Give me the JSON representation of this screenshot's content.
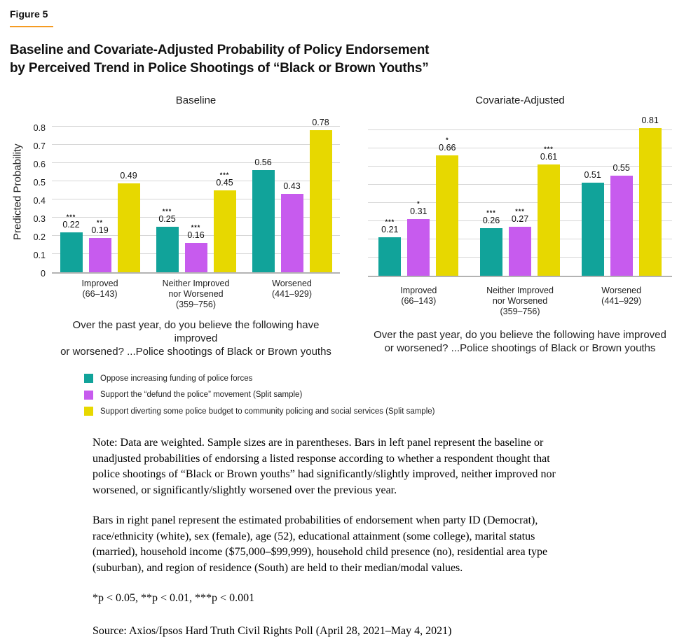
{
  "figure_label": "Figure 5",
  "title_line1": "Baseline and Covariate-Adjusted Probability of Policy Endorsement",
  "title_line2": "by Perceived Trend in Police Shootings of “Black or Brown Youths”",
  "colors": {
    "accent_orange": "#f59b22",
    "teal": "#11a39a",
    "magenta": "#c75bee",
    "yellow": "#e7d800",
    "gridline": "#d6d6d6",
    "axis": "#b3b3b3"
  },
  "chart_data": [
    {
      "type": "bar",
      "title": "Baseline",
      "ylabel": "Predicted Probability",
      "ylim": [
        0,
        0.8
      ],
      "ytick_labels": [
        "0",
        "0.1",
        "0.2",
        "0.3",
        "0.4",
        "0.5",
        "0.6",
        "0.7",
        "0.8"
      ],
      "show_yaxis": true,
      "grid": true,
      "categories": [
        [
          "Improved",
          "(66–143)"
        ],
        [
          "Neither Improved",
          "nor Worsened",
          "(359–756)"
        ],
        [
          "Worsened",
          "(441–929)"
        ]
      ],
      "series": [
        {
          "name": "Oppose increasing funding of police forces",
          "color": "#11a39a",
          "values": [
            0.22,
            0.25,
            0.56
          ],
          "sig": [
            "***",
            "***",
            ""
          ]
        },
        {
          "name": "Support the “defund the police” movement (Split sample)",
          "color": "#c75bee",
          "values": [
            0.19,
            0.16,
            0.43
          ],
          "sig": [
            "**",
            "***",
            ""
          ]
        },
        {
          "name": "Support diverting some police budget to community policing and social services (Split sample)",
          "color": "#e7d800",
          "values": [
            0.49,
            0.45,
            0.78
          ],
          "sig": [
            "",
            "***",
            ""
          ]
        }
      ],
      "xcaption": [
        "Over the past year, do you believe the following have improved",
        "or worsened? ...Police shootings of Black or Brown youths"
      ]
    },
    {
      "type": "bar",
      "title": "Covariate-Adjusted",
      "ylabel": "",
      "ylim": [
        0,
        0.8
      ],
      "ytick_labels": [
        "0",
        "0.1",
        "0.2",
        "0.3",
        "0.4",
        "0.5",
        "0.6",
        "0.7",
        "0.8"
      ],
      "show_yaxis": false,
      "grid": true,
      "categories": [
        [
          "Improved",
          "(66–143)"
        ],
        [
          "Neither Improved",
          "nor Worsened",
          "(359–756)"
        ],
        [
          "Worsened",
          "(441–929)"
        ]
      ],
      "series": [
        {
          "name": "Oppose increasing funding of police forces",
          "color": "#11a39a",
          "values": [
            0.21,
            0.26,
            0.51
          ],
          "sig": [
            "***",
            "***",
            ""
          ]
        },
        {
          "name": "Support the “defund the police” movement (Split sample)",
          "color": "#c75bee",
          "values": [
            0.31,
            0.27,
            0.55
          ],
          "sig": [
            "*",
            "***",
            ""
          ]
        },
        {
          "name": "Support diverting some police budget to community policing and social services (Split sample)",
          "color": "#e7d800",
          "values": [
            0.66,
            0.61,
            0.81
          ],
          "sig": [
            "*",
            "***",
            ""
          ]
        }
      ],
      "xcaption": [
        "Over the past year, do you believe the following have improved",
        "or worsened? ...Police shootings of Black or Brown youths"
      ]
    }
  ],
  "legend": [
    {
      "label": "Oppose increasing funding of police forces",
      "color": "#11a39a"
    },
    {
      "label": "Support the “defund the police” movement (Split sample)",
      "color": "#c75bee"
    },
    {
      "label": "Support diverting some police budget to community policing and social services (Split sample)",
      "color": "#e7d800"
    }
  ],
  "notes": {
    "para1": "Note: Data are weighted. Sample sizes are in parentheses. Bars in left panel represent the baseline or unadjusted probabilities of endorsing a listed response according to whether a respondent thought that police shootings of “Black or Brown youths” had significantly/slightly improved, neither improved nor worsened, or significantly/slightly worsened over the previous year.",
    "para2": "Bars in right panel represent the estimated probabilities of endorsement when party ID (Democrat), race/ethnicity (white), sex (female), age (52), educational attainment (some college), marital status (married), household income ($75,000–$99,999), household child presence (no), residential area type (suburban), and region of residence (South) are held to their median/modal values.",
    "significance": "*p < 0.05, **p < 0.01, ***p < 0.001",
    "source": "Source: Axios/Ipsos Hard Truth Civil Rights Poll (April 28, 2021–May 4, 2021)"
  }
}
